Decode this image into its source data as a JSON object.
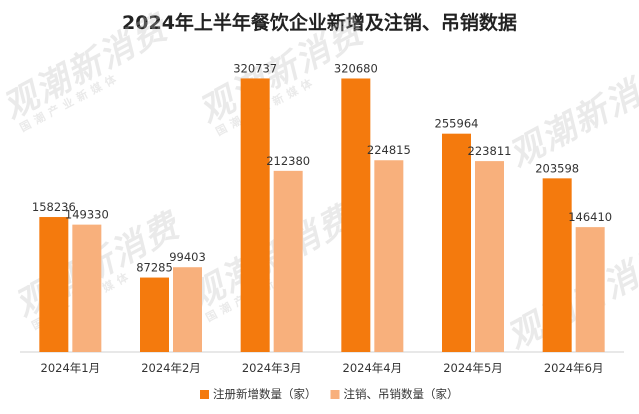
{
  "title": "2024年上半年餐饮企业新增及注销、吊销数据",
  "watermark": {
    "logo": "观潮新消费",
    "tagline": "国潮产业新媒体"
  },
  "colors": {
    "series1": "#F47A0D",
    "series2": "#F8B07C"
  },
  "chart_data": {
    "type": "bar",
    "categories": [
      "2024年1月",
      "2024年2月",
      "2024年3月",
      "2024年4月",
      "2024年5月",
      "2024年6月"
    ],
    "series": [
      {
        "name": "注册新增数量（家）",
        "values": [
          158236,
          87285,
          320737,
          320680,
          255964,
          203598
        ]
      },
      {
        "name": "注销、吊销数量（家）",
        "values": [
          149330,
          99403,
          212380,
          224815,
          223811,
          146410
        ]
      }
    ],
    "title": "2024年上半年餐饮企业新增及注销、吊销数据",
    "xlabel": "",
    "ylabel": "",
    "ylim": [
      0,
      340000
    ],
    "grid": false,
    "legend": "bottom"
  }
}
